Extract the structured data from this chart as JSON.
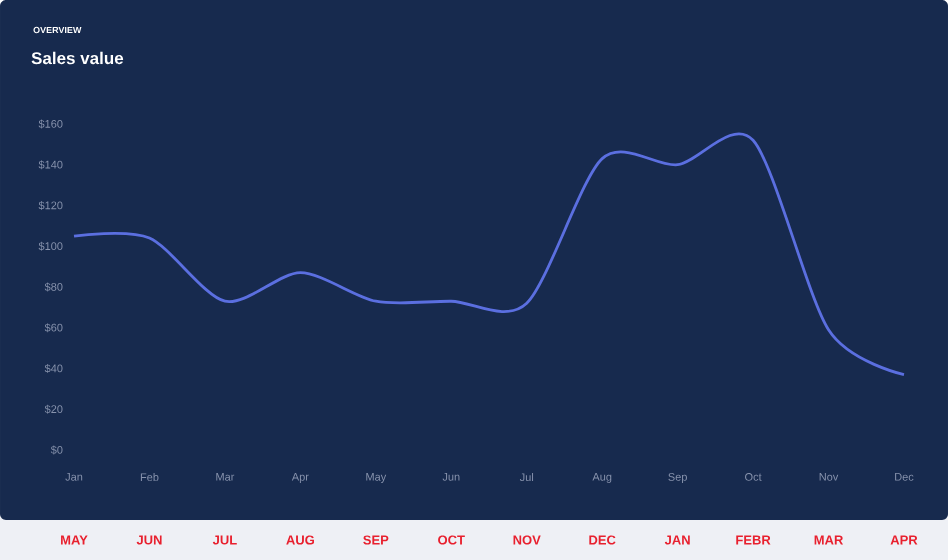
{
  "chart_data": {
    "type": "line",
    "title": "Sales value",
    "subtitle": "OVERVIEW",
    "categories": [
      "Jan",
      "Feb",
      "Mar",
      "Apr",
      "May",
      "Jun",
      "Jul",
      "Aug",
      "Sep",
      "Oct",
      "Nov",
      "Dec"
    ],
    "series": [
      {
        "color": "#5b6fe0",
        "values": [
          105,
          104,
          73,
          87,
          73,
          73,
          72,
          143,
          140,
          152,
          59,
          37
        ]
      }
    ],
    "ylim": [
      0,
      160
    ],
    "yticks": [
      {
        "value": 0,
        "label": "$0"
      },
      {
        "value": 20,
        "label": "$20"
      },
      {
        "value": 40,
        "label": "$40"
      },
      {
        "value": 60,
        "label": "$60"
      },
      {
        "value": 80,
        "label": "$80"
      },
      {
        "value": 100,
        "label": "$100"
      },
      {
        "value": 120,
        "label": "$120"
      },
      {
        "value": 140,
        "label": "$140"
      },
      {
        "value": 160,
        "label": "$160"
      }
    ],
    "grid": false,
    "marker": "none",
    "line_style": "solid",
    "annotations": [
      "MAY",
      "JUN",
      "JUL",
      "AUG",
      "SEP",
      "OCT",
      "NOV",
      "DEC",
      "JAN",
      "FEBR",
      "MAR",
      "APR"
    ]
  }
}
